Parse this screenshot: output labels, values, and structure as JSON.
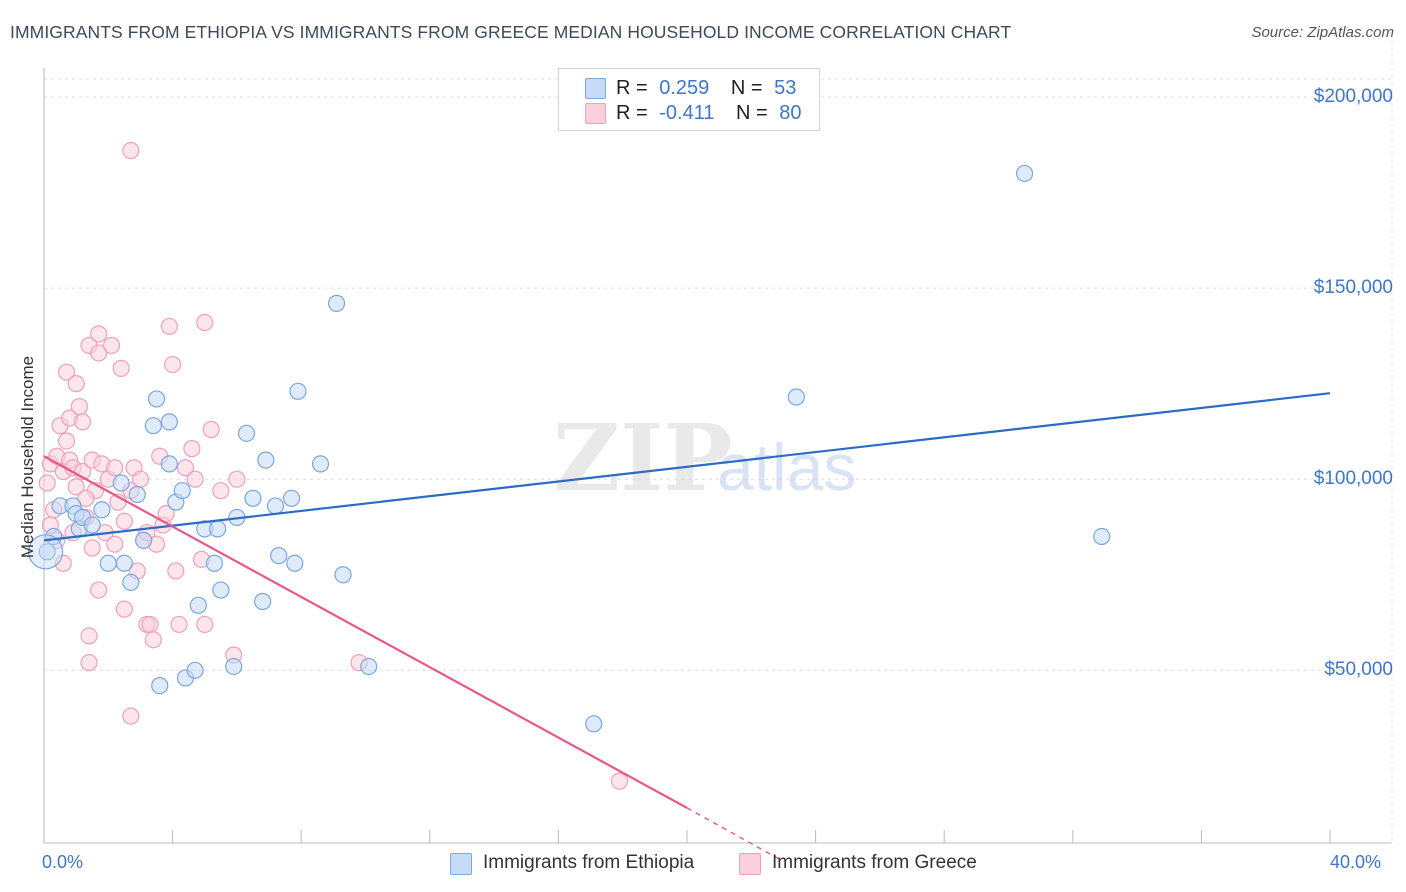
{
  "chart_data": {
    "type": "scatter",
    "title": "IMMIGRANTS FROM ETHIOPIA VS IMMIGRANTS FROM GREECE MEDIAN HOUSEHOLD INCOME CORRELATION CHART",
    "source": "Source: ZipAtlas.com",
    "ylabel": "Median Household Income",
    "xlabel": "",
    "xlim": [
      0,
      40
    ],
    "ylim": [
      0,
      210000
    ],
    "x_tick_labels": [
      "0.0%",
      "40.0%"
    ],
    "y_ticks": [
      {
        "value": 50000,
        "label": "$50,000"
      },
      {
        "value": 100000,
        "label": "$100,000"
      },
      {
        "value": 150000,
        "label": "$150,000"
      },
      {
        "value": 200000,
        "label": "$200,000"
      }
    ],
    "grid": true,
    "watermark": "ZIPatlas",
    "legend": {
      "position": "top-center",
      "entries": [
        {
          "r_label": "R =",
          "r_value": "0.259",
          "n_label": "N =",
          "n_value": "53"
        },
        {
          "r_label": "R =",
          "r_value": "-0.411",
          "n_label": "N =",
          "n_value": "80"
        }
      ]
    },
    "series": [
      {
        "name": "Immigrants from Ethiopia",
        "color": "#8ab4e8",
        "line_color": "#2b6cc6",
        "trend": {
          "x0": 0,
          "y0": 84000,
          "x1": 40,
          "y1": 122500
        },
        "points": [
          [
            0.1,
            81000
          ],
          [
            0.3,
            85000
          ],
          [
            0.5,
            93000
          ],
          [
            0.9,
            93000
          ],
          [
            1.0,
            91000
          ],
          [
            1.1,
            87000
          ],
          [
            1.2,
            90000
          ],
          [
            1.5,
            88000
          ],
          [
            1.8,
            92000
          ],
          [
            2.0,
            78000
          ],
          [
            2.4,
            99000
          ],
          [
            2.5,
            78000
          ],
          [
            2.7,
            73000
          ],
          [
            2.9,
            96000
          ],
          [
            3.1,
            84000
          ],
          [
            3.4,
            114000
          ],
          [
            3.5,
            121000
          ],
          [
            3.6,
            46000
          ],
          [
            3.9,
            115000
          ],
          [
            3.9,
            104000
          ],
          [
            4.1,
            94000
          ],
          [
            4.3,
            97000
          ],
          [
            4.4,
            48000
          ],
          [
            4.7,
            50000
          ],
          [
            4.8,
            67000
          ],
          [
            5.0,
            87000
          ],
          [
            5.3,
            78000
          ],
          [
            5.4,
            87000
          ],
          [
            5.5,
            71000
          ],
          [
            5.9,
            51000
          ],
          [
            6.0,
            90000
          ],
          [
            6.3,
            112000
          ],
          [
            6.5,
            95000
          ],
          [
            6.8,
            68000
          ],
          [
            6.9,
            105000
          ],
          [
            7.2,
            93000
          ],
          [
            7.3,
            80000
          ],
          [
            7.7,
            95000
          ],
          [
            7.8,
            78000
          ],
          [
            7.9,
            123000
          ],
          [
            8.6,
            104000
          ],
          [
            9.1,
            146000
          ],
          [
            9.3,
            75000
          ],
          [
            10.1,
            51000
          ],
          [
            17.1,
            36000
          ],
          [
            23.4,
            121500
          ],
          [
            30.5,
            180000
          ],
          [
            32.9,
            85000
          ]
        ]
      },
      {
        "name": "Immigrants from Greece",
        "color": "#f4a6bf",
        "line_color": "#e8578a",
        "trend": {
          "x0": 0,
          "y0": 106000,
          "x1": 20,
          "y1": 14000
        },
        "trend_dashed_to": {
          "x": 23,
          "y": 0
        },
        "points": [
          [
            0.1,
            99000
          ],
          [
            0.2,
            88000
          ],
          [
            0.2,
            104000
          ],
          [
            0.3,
            92000
          ],
          [
            0.4,
            106000
          ],
          [
            0.4,
            84000
          ],
          [
            0.5,
            114000
          ],
          [
            0.6,
            102000
          ],
          [
            0.7,
            128000
          ],
          [
            0.7,
            110000
          ],
          [
            0.8,
            105000
          ],
          [
            0.8,
            116000
          ],
          [
            0.9,
            103000
          ],
          [
            0.9,
            86000
          ],
          [
            1.0,
            98000
          ],
          [
            1.0,
            125000
          ],
          [
            1.1,
            119000
          ],
          [
            1.2,
            115000
          ],
          [
            1.2,
            102000
          ],
          [
            1.3,
            90000
          ],
          [
            1.4,
            135000
          ],
          [
            1.4,
            59000
          ],
          [
            1.4,
            52000
          ],
          [
            1.5,
            105000
          ],
          [
            1.5,
            82000
          ],
          [
            1.6,
            97000
          ],
          [
            1.7,
            133000
          ],
          [
            1.7,
            138000
          ],
          [
            1.7,
            71000
          ],
          [
            1.8,
            104000
          ],
          [
            1.9,
            86000
          ],
          [
            2.0,
            100000
          ],
          [
            2.1,
            135000
          ],
          [
            2.2,
            103000
          ],
          [
            2.2,
            83000
          ],
          [
            2.3,
            94000
          ],
          [
            2.4,
            129000
          ],
          [
            2.5,
            89000
          ],
          [
            2.5,
            66000
          ],
          [
            2.7,
            97000
          ],
          [
            2.8,
            103000
          ],
          [
            2.9,
            76000
          ],
          [
            3.0,
            100000
          ],
          [
            3.1,
            84000
          ],
          [
            3.2,
            86000
          ],
          [
            3.2,
            62000
          ],
          [
            3.3,
            62000
          ],
          [
            3.4,
            58000
          ],
          [
            3.5,
            83000
          ],
          [
            3.6,
            106000
          ],
          [
            3.7,
            88000
          ],
          [
            3.9,
            140000
          ],
          [
            4.0,
            130000
          ],
          [
            4.1,
            76000
          ],
          [
            4.2,
            62000
          ],
          [
            4.4,
            103000
          ],
          [
            4.6,
            108000
          ],
          [
            4.7,
            100000
          ],
          [
            5.0,
            141000
          ],
          [
            5.0,
            62000
          ],
          [
            5.2,
            113000
          ],
          [
            5.5,
            97000
          ],
          [
            5.9,
            54000
          ],
          [
            6.0,
            100000
          ],
          [
            2.7,
            186000
          ],
          [
            2.7,
            38000
          ],
          [
            4.9,
            79000
          ],
          [
            3.8,
            91000
          ],
          [
            1.3,
            95000
          ],
          [
            0.6,
            78000
          ],
          [
            9.8,
            52000
          ],
          [
            17.9,
            21000
          ]
        ]
      }
    ]
  },
  "bottom_legend": {
    "ethiopia": "Immigrants from Ethiopia",
    "greece": "Immigrants from Greece"
  },
  "colors": {
    "blue_fill": "#c5dbf7",
    "blue_stroke": "#7aa7e0",
    "pink_fill": "#fbcfdd",
    "pink_stroke": "#eea0bb",
    "tick_text": "#3f76c8"
  }
}
